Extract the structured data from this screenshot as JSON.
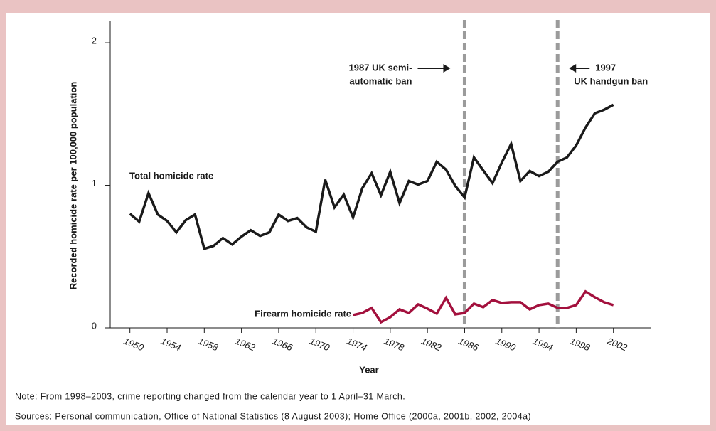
{
  "chart_data": {
    "type": "line",
    "x": [
      1950,
      1951,
      1952,
      1953,
      1954,
      1955,
      1956,
      1957,
      1958,
      1959,
      1960,
      1961,
      1962,
      1963,
      1964,
      1965,
      1966,
      1967,
      1968,
      1969,
      1970,
      1971,
      1972,
      1973,
      1974,
      1975,
      1976,
      1977,
      1978,
      1979,
      1980,
      1981,
      1982,
      1983,
      1984,
      1985,
      1986,
      1987,
      1988,
      1989,
      1990,
      1991,
      1992,
      1993,
      1994,
      1995,
      1996,
      1997,
      1998,
      1999,
      2000,
      2001,
      2002
    ],
    "series": [
      {
        "name": "Total homicide rate",
        "color": "#1a1a1a",
        "values": [
          0.8,
          0.745,
          0.945,
          0.795,
          0.75,
          0.67,
          0.755,
          0.795,
          0.555,
          0.575,
          0.63,
          0.585,
          0.64,
          0.685,
          0.645,
          0.67,
          0.795,
          0.75,
          0.77,
          0.705,
          0.675,
          1.04,
          0.845,
          0.935,
          0.775,
          0.98,
          1.085,
          0.93,
          1.095,
          0.875,
          1.03,
          1.005,
          1.03,
          1.165,
          1.11,
          0.995,
          0.915,
          1.195,
          1.105,
          1.015,
          1.16,
          1.29,
          1.03,
          1.1,
          1.065,
          1.095,
          1.165,
          1.195,
          1.28,
          1.405,
          1.505,
          1.53,
          1.565
        ]
      },
      {
        "name": "Firearm homicide rate",
        "color": "#a3103d",
        "values": [
          null,
          null,
          null,
          null,
          null,
          null,
          null,
          null,
          null,
          null,
          null,
          null,
          null,
          null,
          null,
          null,
          null,
          null,
          null,
          null,
          null,
          null,
          null,
          null,
          0.09,
          0.105,
          0.14,
          0.04,
          0.075,
          0.13,
          0.105,
          0.165,
          0.135,
          0.1,
          0.21,
          0.095,
          0.105,
          0.17,
          0.145,
          0.195,
          0.175,
          0.18,
          0.18,
          0.13,
          0.16,
          0.17,
          0.14,
          0.14,
          0.16,
          0.255,
          0.215,
          0.18,
          0.16
        ]
      }
    ],
    "xlim": [
      1947.5,
      2006
    ],
    "xticks": [
      1950,
      1954,
      1958,
      1962,
      1966,
      1970,
      1974,
      1978,
      1982,
      1986,
      1990,
      1994,
      1998,
      2002
    ],
    "ylim": [
      0,
      2.15
    ],
    "yticks": [
      0,
      1,
      2
    ],
    "xlabel": "Year",
    "ylabel": "Recorded homicide rate per 100,000 population",
    "grid": false,
    "annotations": [
      {
        "x": 1986,
        "lines": [
          "1987 UK semi-",
          "automatic ban"
        ]
      },
      {
        "x": 1996,
        "lines": [
          "1997",
          "UK handgun ban"
        ]
      }
    ],
    "note": "Note: From 1998–2003, crime reporting changed from the calendar year to 1 April–31 March.",
    "sources": "Sources: Personal communication, Office of National Statistics (8 August 2003); Home Office (2000a, 2001b, 2002, 2004a)"
  }
}
